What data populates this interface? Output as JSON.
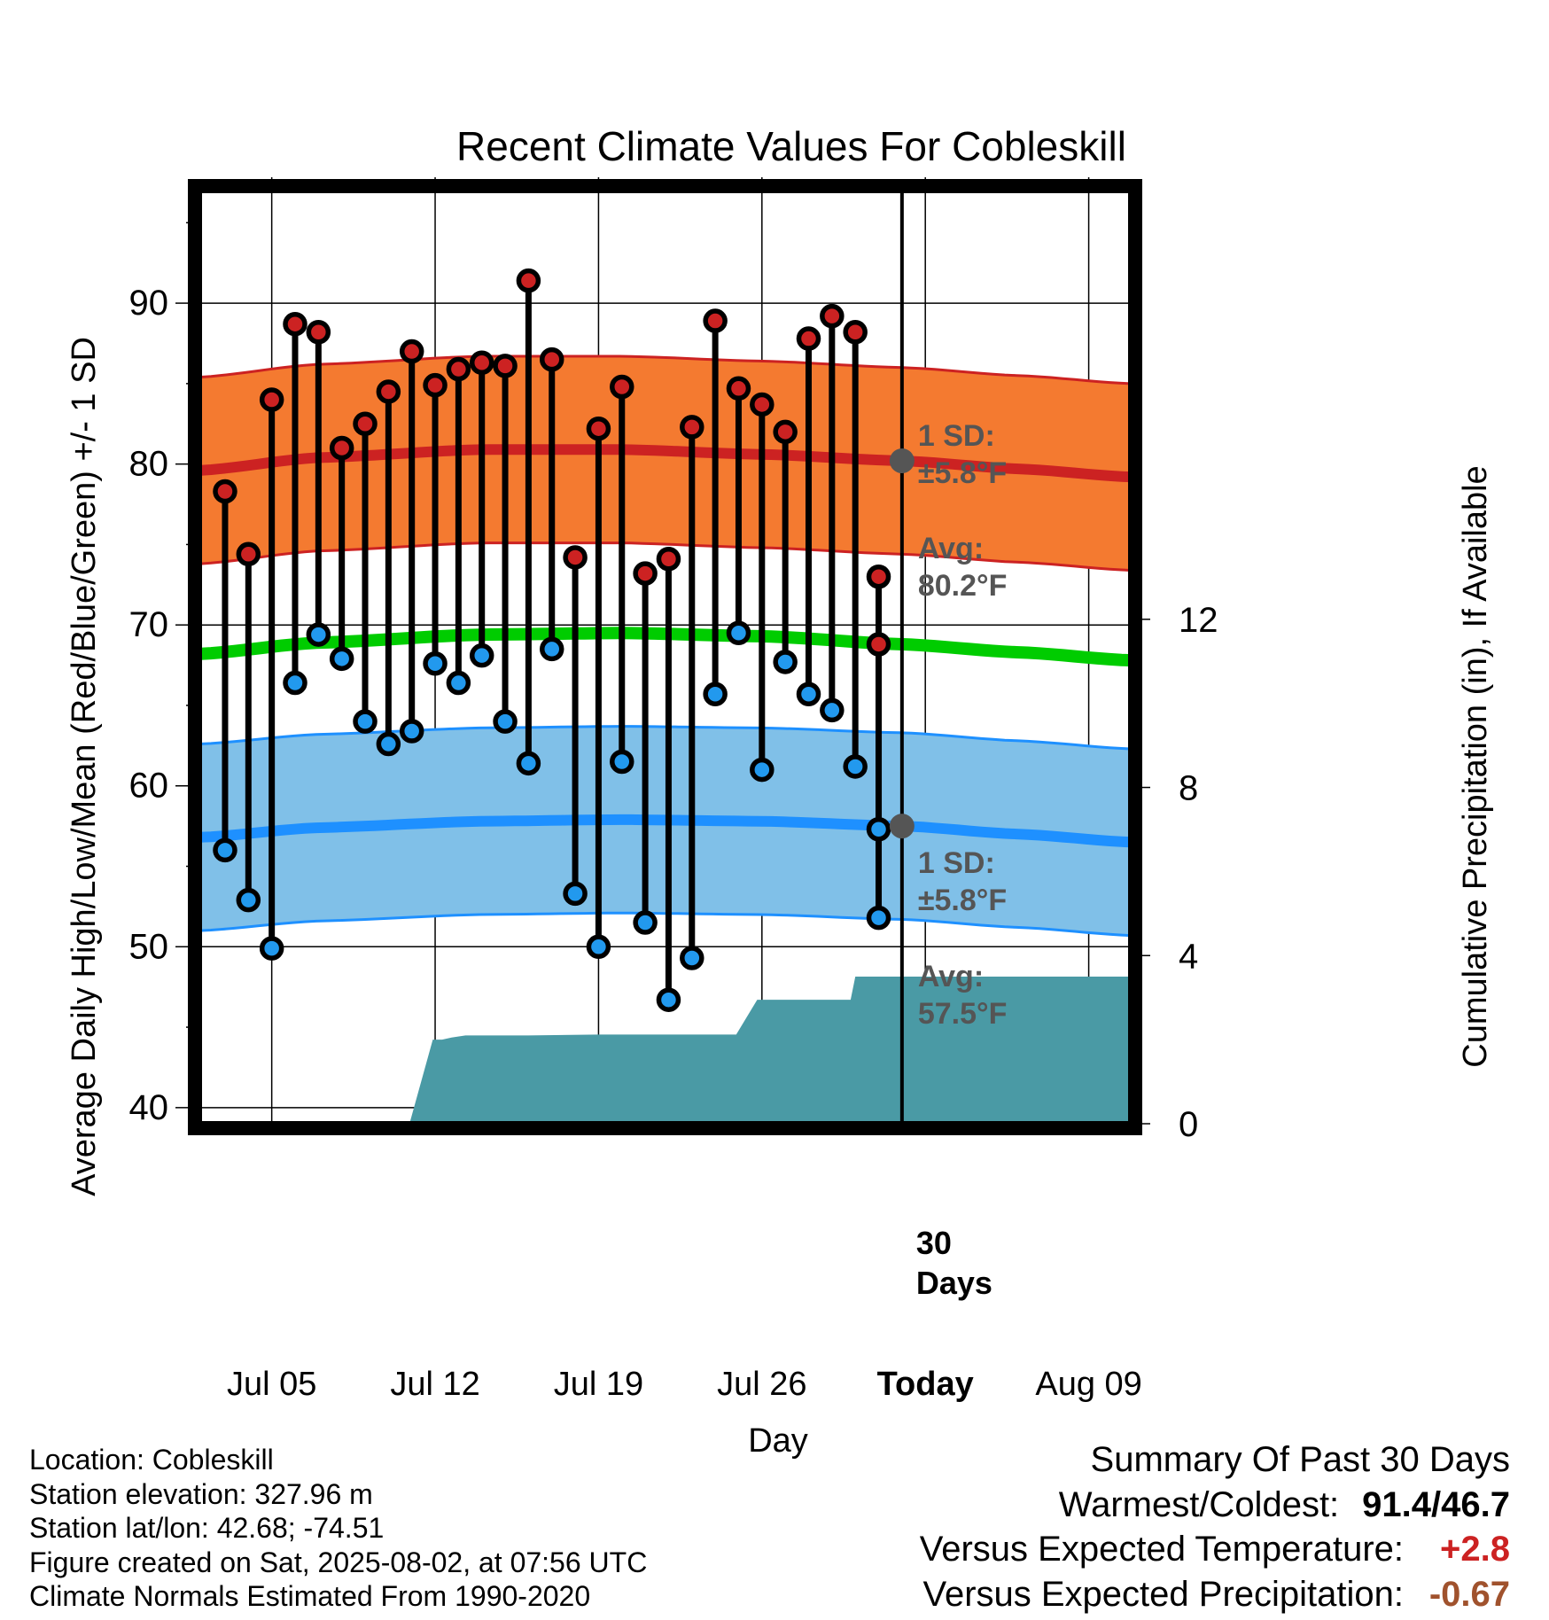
{
  "chart_data": {
    "type": "line",
    "title": "Recent Climate Values For Cobleskill",
    "xlabel": "Day",
    "ylabel": "Average Daily High/Low/Mean (Red/Blue/Green) +/- 1 SD",
    "ylabel_right": "Cumulative Precipitation (in), If Available",
    "x_tick_labels": [
      "Jul 05",
      "Jul 12",
      "Jul 19",
      "Jul 26",
      "Today",
      "Aug 09"
    ],
    "y_ticks": [
      40,
      50,
      60,
      70,
      80,
      90
    ],
    "y_ticks_right": [
      0,
      4,
      8,
      12
    ],
    "ylim": [
      39,
      97
    ],
    "ylim_right": [
      0,
      22.2
    ],
    "xlim_days": [
      -30.1,
      9.8
    ],
    "days": [
      -29,
      -28,
      -27,
      -26,
      -25,
      -24,
      -23,
      -22,
      -21,
      -20,
      -19,
      -18,
      -17,
      -16,
      -15,
      -14,
      -13,
      -12,
      -11,
      -10,
      -9,
      -8,
      -7,
      -6,
      -5,
      -4,
      -3,
      -2,
      -1
    ],
    "series": [
      {
        "name": "High",
        "color": "#cc2222",
        "values": [
          78.3,
          74.4,
          84.0,
          88.7,
          88.2,
          81.0,
          82.5,
          84.5,
          87.0,
          84.9,
          85.9,
          86.3,
          86.1,
          91.4,
          86.5,
          74.2,
          82.2,
          84.8,
          73.2,
          74.1,
          82.3,
          88.9,
          84.7,
          83.7,
          82.0,
          87.8,
          89.2,
          88.2,
          68.8
        ]
      },
      {
        "name": "Low",
        "color": "#2299ee",
        "values": [
          56.0,
          52.9,
          49.9,
          66.4,
          69.4,
          67.9,
          64.0,
          62.6,
          63.4,
          67.6,
          66.4,
          68.1,
          64.0,
          61.4,
          68.5,
          53.3,
          50.0,
          61.5,
          51.5,
          46.7,
          49.3,
          65.7,
          69.5,
          61.0,
          67.7,
          65.7,
          64.7,
          61.2,
          57.3
        ]
      }
    ],
    "extra_point": {
      "day": -1,
      "high": 73.0,
      "low": 51.8
    },
    "normals": {
      "high_avg": {
        "days": [
          -30.1,
          -25,
          -18,
          -12,
          -6,
          0,
          5,
          9.8
        ],
        "values": [
          79.6,
          80.4,
          80.9,
          80.9,
          80.6,
          80.2,
          79.7,
          79.2
        ]
      },
      "low_avg": {
        "days": [
          -30.1,
          -25,
          -18,
          -12,
          -6,
          0,
          5,
          9.8
        ],
        "values": [
          56.8,
          57.4,
          57.8,
          57.9,
          57.8,
          57.5,
          57.0,
          56.5
        ]
      },
      "mean_avg": {
        "days": [
          -30.1,
          -25,
          -18,
          -12,
          -6,
          0,
          5,
          9.8
        ],
        "values": [
          68.2,
          68.9,
          69.4,
          69.5,
          69.3,
          68.8,
          68.3,
          67.8
        ]
      },
      "sd": 5.8
    },
    "precip_cumulative": {
      "days": [
        -30.1,
        -21.1,
        -20.1,
        -19.7,
        -19.3,
        -18.7,
        -16.0,
        -13.0,
        -10.0,
        -7.1,
        -6.2,
        -5.0,
        -3.0,
        -2.2,
        -2.0,
        -1.0,
        9.8
      ],
      "values": [
        0,
        0,
        2.0,
        2.0,
        2.05,
        2.1,
        2.1,
        2.12,
        2.12,
        2.12,
        2.95,
        2.95,
        2.95,
        2.95,
        3.5,
        3.5,
        3.5
      ]
    },
    "annotations": {
      "high_sd_label": "1 SD:",
      "high_sd_value": "±5.8°F",
      "high_avg_label": "Avg:",
      "high_avg_value": "80.2°F",
      "high_avg": 80.2,
      "low_sd_label": "1 SD:",
      "low_sd_value": "±5.8°F",
      "low_avg_label": "Avg:",
      "low_avg_value": "57.5°F",
      "low_avg": 57.5,
      "days_number": "30",
      "days_word": "Days"
    },
    "colors": {
      "high_band": "#f47a30",
      "high_line": "#cc2222",
      "low_band": "#80c0e8",
      "low_line": "#1e90ff",
      "mean_line": "#00cc00",
      "precip": "#4a9aa5",
      "annotation": "#555555"
    }
  },
  "info": {
    "location": "Location: Cobleskill",
    "elevation": "Station elevation: 327.96 m",
    "latlon": "Station lat/lon: 42.68; -74.51",
    "created": "Figure created on Sat, 2025-08-02, at 07:56 UTC",
    "normals": "Climate Normals Estimated From 1990-2020"
  },
  "summary": {
    "title": "Summary Of Past 30 Days",
    "warmest_label": "Warmest/Coldest:",
    "warmest_value": "91.4/46.7",
    "temp_label": "Versus Expected Temperature:",
    "temp_value": "+2.8",
    "temp_color": "#cc2222",
    "precip_label": "Versus Expected Precipitation:",
    "precip_value": "-0.67",
    "precip_color": "#a0522d"
  }
}
